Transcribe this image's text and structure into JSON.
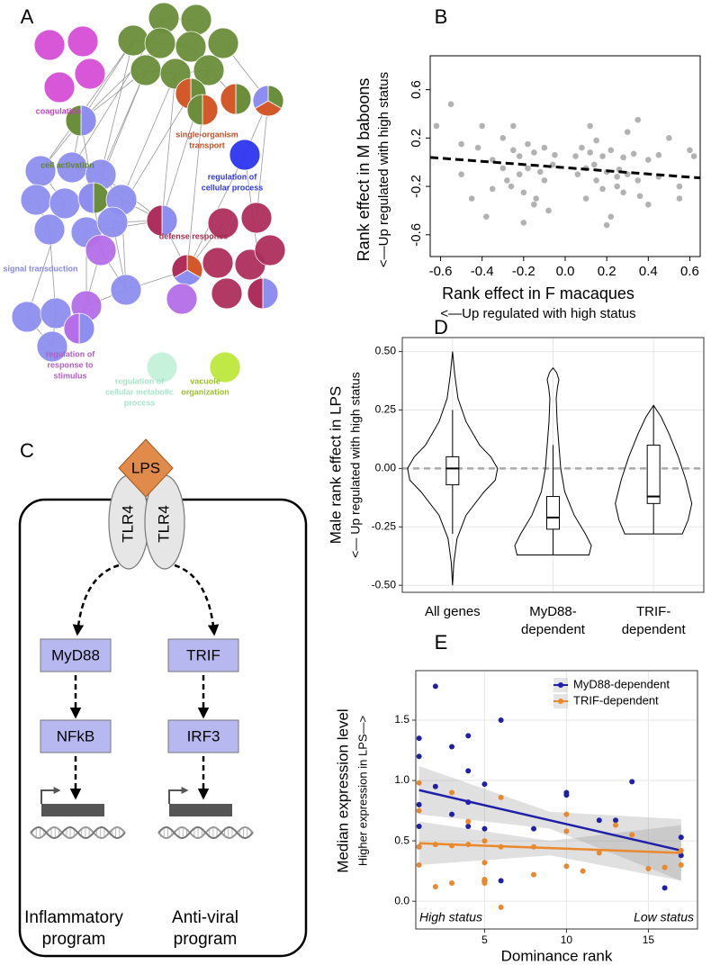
{
  "panel_labels": [
    "A",
    "B",
    "C",
    "D",
    "E"
  ],
  "network": {
    "labels": [
      {
        "lines": [
          "coagulation"
        ],
        "color": "#c040c0"
      },
      {
        "lines": [
          "cell activation"
        ],
        "color": "#5f8232"
      },
      {
        "lines": [
          "single-organism",
          "transport"
        ],
        "color": "#c0502a"
      },
      {
        "lines": [
          "regulation of",
          "cellular process"
        ],
        "color": "#2e35f0"
      },
      {
        "lines": [
          "defense response"
        ],
        "color": "#a03050"
      },
      {
        "lines": [
          "signal transduction"
        ],
        "color": "#8686e0"
      },
      {
        "lines": [
          "regulation of",
          "response to",
          "stimulus"
        ],
        "color": "#b060c0"
      },
      {
        "lines": [
          "regulation of",
          "cellular metabolic",
          "process"
        ],
        "color": "#a8e4cc"
      },
      {
        "lines": [
          "vacuole",
          "organization"
        ],
        "color": "#9cc030"
      }
    ]
  },
  "diagram": {
    "ligand": "LPS",
    "receptors": [
      "TLR4",
      "TLR4"
    ],
    "adaptors": [
      "MyD88",
      "TRIF"
    ],
    "factors": [
      "NFkB",
      "IRF3"
    ],
    "programs": [
      [
        "Inflammatory",
        "program"
      ],
      [
        "Anti-viral",
        "program"
      ]
    ]
  },
  "chart_data": [
    {
      "type": "scatter",
      "xlabel": [
        "Rank effect in F macaques",
        "<—Up regulated with high status"
      ],
      "ylabel": [
        "Rank effect in M baboons",
        "<—Up regulated with high status"
      ],
      "xlim": [
        -0.65,
        0.65
      ],
      "ylim": [
        -0.78,
        0.88
      ],
      "xticks": [
        -0.6,
        -0.4,
        -0.2,
        {
          "value": 0,
          "label": "0.0"
        },
        0.2,
        0.4,
        0.6
      ],
      "yticks": [
        -0.6,
        -0.2,
        0.2,
        0.6
      ],
      "color": "#555555",
      "x": [
        -0.62,
        -0.55,
        -0.5,
        -0.45,
        -0.42,
        -0.38,
        -0.35,
        -0.3,
        -0.28,
        -0.25,
        -0.22,
        -0.2,
        -0.18,
        -0.15,
        -0.12,
        -0.1,
        -0.08,
        -0.05,
        -0.3,
        -0.26,
        -0.22,
        -0.18,
        -0.14,
        -0.1,
        -0.06,
        -0.25,
        -0.2,
        -0.15,
        -0.35,
        -0.4,
        -0.5,
        0.05,
        0.08,
        0.1,
        0.12,
        0.15,
        0.18,
        0.2,
        0.22,
        0.25,
        0.28,
        0.3,
        0.33,
        0.36,
        0.4,
        0.45,
        0.5,
        0.55,
        0.6,
        0.06,
        0.1,
        0.14,
        0.18,
        0.22,
        0.26,
        0.3,
        0.35,
        0.4,
        0.12,
        0.2,
        0.28,
        0.35,
        0.45,
        0.55,
        0.62,
        0.15,
        0.25
      ],
      "y": [
        0.3,
        0.48,
        -0.1,
        -0.3,
        0.12,
        -0.45,
        0.02,
        0.2,
        -0.15,
        0.1,
        0.05,
        -0.25,
        0.15,
        0.08,
        -0.08,
        0.12,
        -0.4,
        0.06,
        -0.05,
        -0.2,
        -0.1,
        -0.05,
        -0.3,
        -0.15,
        -0.02,
        0.3,
        -0.5,
        -0.35,
        -0.22,
        0.3,
        0.15,
        0.05,
        0.12,
        -0.05,
        0.08,
        -0.15,
        0.05,
        -0.08,
        0.1,
        -0.2,
        0.04,
        -0.1,
        0.07,
        -0.28,
        0.02,
        -0.12,
        0.2,
        -0.3,
        0.1,
        -0.1,
        -0.3,
        -0.02,
        -0.22,
        -0.45,
        -0.06,
        0.25,
        -0.15,
        -0.35,
        0.3,
        -0.52,
        -0.25,
        0.35,
        0.06,
        -0.2,
        0.05,
        0.18,
        -0.12
      ],
      "trend": {
        "x": [
          -0.65,
          0.65
        ],
        "y": [
          0.04,
          -0.13
        ]
      }
    },
    {
      "type": "violin",
      "ylabel": [
        "Male rank effect in LPS",
        "<— Up regulated with high status"
      ],
      "categories": [
        [
          "All genes"
        ],
        [
          "MyD88-",
          "dependent"
        ],
        [
          "TRIF-",
          "dependent"
        ]
      ],
      "ylim": [
        -0.53,
        0.56
      ],
      "yticks": [
        {
          "value": -0.5,
          "label": "-0.50"
        },
        {
          "value": -0.25,
          "label": "-0.25"
        },
        {
          "value": 0,
          "label": "0.00"
        },
        {
          "value": 0.25,
          "label": "0.25"
        },
        {
          "value": 0.5,
          "label": "0.50"
        }
      ],
      "grid": true,
      "hline": 0,
      "groups": [
        {
          "density_y": [
            -0.5,
            -0.4,
            -0.3,
            -0.2,
            -0.1,
            -0.05,
            0,
            0.05,
            0.1,
            0.2,
            0.3,
            0.4,
            0.5
          ],
          "density": [
            0,
            0.03,
            0.1,
            0.3,
            0.7,
            0.95,
            1,
            0.85,
            0.6,
            0.3,
            0.12,
            0.05,
            0
          ],
          "whisker_low": -0.28,
          "q1": -0.07,
          "median": 0,
          "q3": 0.05,
          "whisker_high": 0.25
        },
        {
          "density_y": [
            -0.37,
            -0.33,
            -0.28,
            -0.2,
            -0.1,
            0,
            0.1,
            0.2,
            0.3,
            0.35,
            0.38,
            0.41,
            0.43
          ],
          "density": [
            0.8,
            0.85,
            0.72,
            0.47,
            0.26,
            0.17,
            0.13,
            0.09,
            0.07,
            0.1,
            0.13,
            0.08,
            0
          ],
          "whisker_low": -0.37,
          "q1": -0.26,
          "median": -0.21,
          "q3": -0.12,
          "whisker_high": 0.1
        },
        {
          "density_y": [
            -0.28,
            -0.22,
            -0.15,
            -0.05,
            0.05,
            0.15,
            0.22,
            0.27
          ],
          "density": [
            0.64,
            0.77,
            0.85,
            0.72,
            0.55,
            0.34,
            0.17,
            0
          ],
          "whisker_low": -0.28,
          "q1": -0.15,
          "median": -0.12,
          "q3": 0.1,
          "whisker_high": 0.27
        }
      ]
    },
    {
      "type": "scatter",
      "xlabel": [
        "Dominance rank"
      ],
      "ylabel": [
        "Median expression level",
        "Higher expression in LPS—>"
      ],
      "xlim": [
        0.8,
        18
      ],
      "ylim": [
        -0.23,
        1.91
      ],
      "xticks": [
        5,
        10,
        15
      ],
      "yticks": [
        {
          "value": 0,
          "label": "0.0"
        },
        0.5,
        {
          "value": 1,
          "label": "1.0"
        },
        1.5
      ],
      "grid": true,
      "legend": "top-right",
      "annotations": [
        "High status",
        "Low status"
      ],
      "series": [
        {
          "name": "MyD88-dependent",
          "color": "#1f1fa8",
          "x": [
            1,
            1,
            1,
            1,
            1,
            2,
            2,
            3,
            3,
            4,
            4,
            4,
            4,
            5,
            5,
            5,
            6,
            6,
            8,
            10,
            10,
            12,
            13,
            14,
            16,
            17,
            17
          ],
          "values": [
            1.35,
            1.2,
            0.8,
            0.62,
            0.45,
            1.78,
            0.95,
            1.28,
            0.72,
            1.37,
            1.08,
            0.82,
            0.62,
            0.97,
            0.6,
            0.17,
            1.5,
            0.17,
            0.6,
            0.9,
            0.88,
            0.67,
            0.67,
            0.99,
            0.11,
            0.53,
            0.38
          ],
          "fit": {
            "x": [
              1,
              9,
              17
            ],
            "y": [
              0.92,
              0.67,
              0.42
            ],
            "lower": [
              0.72,
              0.6,
              0.17
            ],
            "upper": [
              1.12,
              0.74,
              0.68
            ]
          }
        },
        {
          "name": "TRIF-dependent",
          "color": "#e8892e",
          "x": [
            1,
            1,
            1,
            1,
            2,
            2,
            3,
            3,
            3,
            4,
            4,
            5,
            5,
            5,
            5,
            6,
            6,
            6,
            8,
            8,
            10,
            10,
            10,
            11,
            12,
            13,
            14,
            15,
            16,
            17,
            17
          ],
          "values": [
            0.98,
            0.75,
            0.45,
            0.3,
            0.47,
            0.12,
            0.9,
            0.46,
            0.15,
            0.66,
            0.47,
            0.5,
            0.32,
            0.18,
            0.15,
            0.86,
            0.45,
            -0.05,
            0.45,
            0.22,
            0.72,
            0.58,
            0.29,
            0.25,
            0.4,
            0.63,
            0.55,
            0.27,
            0.28,
            0.42,
            0.3
          ],
          "fit": {
            "x": [
              1,
              9,
              17
            ],
            "y": [
              0.48,
              0.44,
              0.4
            ],
            "lower": [
              0.3,
              0.38,
              0.17
            ],
            "upper": [
              0.66,
              0.5,
              0.63
            ]
          }
        }
      ]
    }
  ]
}
